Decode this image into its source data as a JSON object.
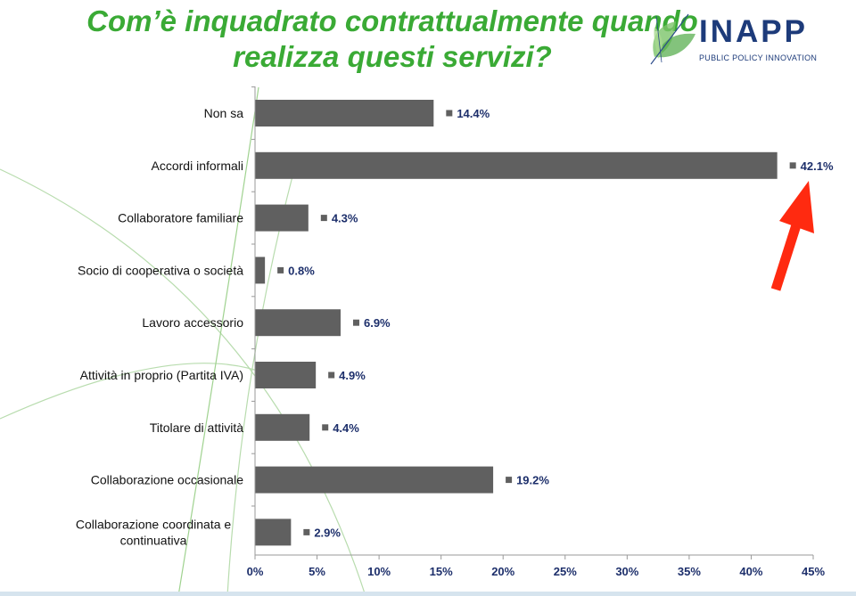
{
  "title": "Com’è inquadrato contrattualmente quando realizza questi servizi?",
  "title_lines": [
    "Com’è inquadrato contrattualmente quando",
    "realizza questi servizi?"
  ],
  "logo": {
    "name": "INAPP",
    "tagline": "PUBLIC POLICY INNOVATION"
  },
  "colors": {
    "title": "#3aaa35",
    "bar": "#606060",
    "label": "#1d2f6b",
    "arrow": "#ff2a10",
    "brand": "#1d3b7a"
  },
  "chart_data": {
    "type": "bar",
    "orientation": "horizontal",
    "categories": [
      "Non sa",
      "Accordi informali",
      "Collaboratore familiare",
      "Socio di cooperativa o società",
      "Lavoro accessorio",
      "Attività in proprio (Partita IVA)",
      "Titolare di attività",
      "Collaborazione occasionale",
      "Collaborazione coordinata e continuativa"
    ],
    "values": [
      14.4,
      42.1,
      4.3,
      0.8,
      6.9,
      4.9,
      4.4,
      19.2,
      2.9
    ],
    "data_labels": [
      "14.4%",
      "42.1%",
      "4.3%",
      "0.8%",
      "6.9%",
      "4.9%",
      "4.4%",
      "19.2%",
      "2.9%"
    ],
    "xlim": [
      0,
      45
    ],
    "xticks": [
      "0%",
      "5%",
      "10%",
      "15%",
      "20%",
      "25%",
      "30%",
      "35%",
      "40%",
      "45%"
    ],
    "grid": false,
    "legend": "none",
    "annotation": "red arrow pointing to Accordi informali (42.1%)"
  }
}
